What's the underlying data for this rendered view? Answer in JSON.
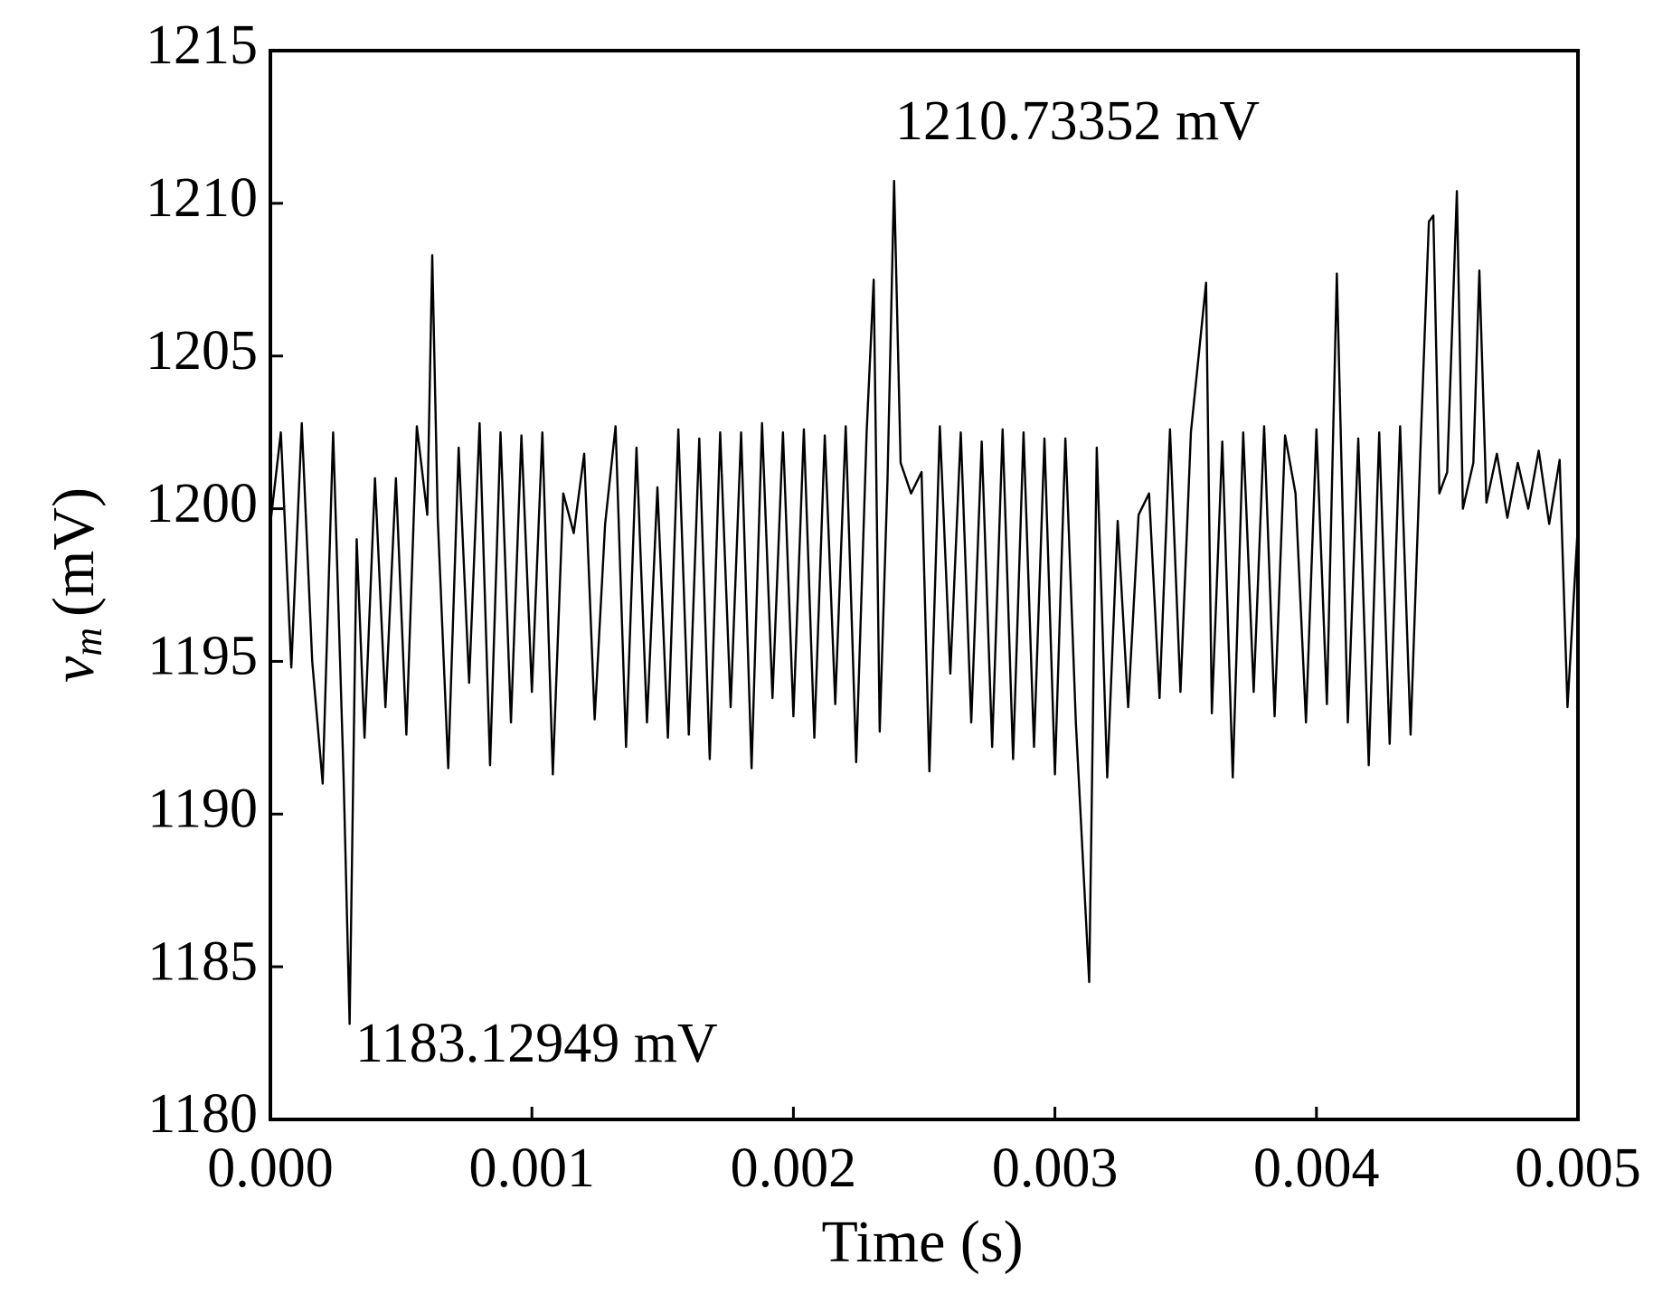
{
  "chart_data": {
    "type": "line",
    "xlabel": "Time (s)",
    "ylabel": {
      "symbol": "v",
      "subscript": "m",
      "unit": "(mV)"
    },
    "annotations": [
      "1210.73352 mV",
      "1183.12949 mV"
    ],
    "xlim": [
      0,
      0.005
    ],
    "xticks": [
      {
        "value": 0,
        "label": "0.000"
      },
      {
        "value": 0.001,
        "label": "0.001"
      },
      {
        "value": 0.002,
        "label": "0.002"
      },
      {
        "value": 0.003,
        "label": "0.003"
      },
      {
        "value": 0.004,
        "label": "0.004"
      },
      {
        "value": 0.005,
        "label": "0.005"
      }
    ],
    "ylim": [
      1180,
      1215
    ],
    "yticks": [
      1180,
      1185,
      1190,
      1195,
      1200,
      1205,
      1210,
      1215
    ],
    "grid": false,
    "series": [
      {
        "color": "#000000",
        "x": [
          0,
          4e-05,
          8e-05,
          0.00012,
          0.00016,
          0.0002,
          0.00024,
          0.00028,
          0.000303,
          0.00033,
          0.00036,
          0.0004,
          0.00044,
          0.00048,
          0.00052,
          0.00056,
          0.0006,
          0.000619,
          0.00064,
          0.00068,
          0.00072,
          0.00076,
          0.0008,
          0.00084,
          0.00088,
          0.00092,
          0.00096,
          0.001,
          0.00104,
          0.00108,
          0.00112,
          0.00116,
          0.0012,
          0.00124,
          0.00128,
          0.00132,
          0.00136,
          0.0014,
          0.00144,
          0.00148,
          0.00152,
          0.00156,
          0.0016,
          0.00164,
          0.00168,
          0.00172,
          0.00176,
          0.0018,
          0.00184,
          0.00188,
          0.00192,
          0.00196,
          0.002,
          0.00204,
          0.00208,
          0.00212,
          0.00216,
          0.0022,
          0.00224,
          0.00228,
          0.002307,
          0.00233,
          0.00236,
          0.002385,
          0.00241,
          0.00245,
          0.00249,
          0.00252,
          0.00256,
          0.0026,
          0.00264,
          0.00268,
          0.00272,
          0.00276,
          0.0028,
          0.00284,
          0.00288,
          0.00292,
          0.00296,
          0.003,
          0.00304,
          0.00308,
          0.003131,
          0.00316,
          0.0032,
          0.00324,
          0.00328,
          0.00332,
          0.00336,
          0.0034,
          0.00344,
          0.00348,
          0.00352,
          0.003578,
          0.0036,
          0.00364,
          0.00368,
          0.00372,
          0.00376,
          0.0038,
          0.00384,
          0.00388,
          0.00392,
          0.00396,
          0.004,
          0.00404,
          0.004078,
          0.00412,
          0.00416,
          0.0042,
          0.00424,
          0.00428,
          0.00432,
          0.00436,
          0.0044,
          0.00443,
          0.004447,
          0.00447,
          0.0045,
          0.004537,
          0.00456,
          0.0046,
          0.004623,
          0.00465,
          0.00469,
          0.00473,
          0.00477,
          0.00481,
          0.00485,
          0.00489,
          0.00493,
          0.00496,
          0.005
        ],
        "values": [
          1199.5,
          1202.5,
          1194.8,
          1202.8,
          1195,
          1191,
          1202.5,
          1191.2,
          1183.12949,
          1199,
          1192.5,
          1201,
          1193.5,
          1201,
          1192.6,
          1202.7,
          1199.8,
          1208.3,
          1199.7,
          1191.5,
          1202,
          1194.3,
          1202.8,
          1191.6,
          1202.5,
          1193,
          1202.4,
          1194,
          1202.5,
          1191.3,
          1200.5,
          1199.2,
          1201.8,
          1193.1,
          1199.5,
          1202.7,
          1192.2,
          1202,
          1193,
          1200.7,
          1192.5,
          1202.6,
          1192.6,
          1202.3,
          1191.8,
          1202.5,
          1193.5,
          1202.5,
          1191.5,
          1202.8,
          1193.8,
          1202.5,
          1193.2,
          1202.6,
          1192.5,
          1202.4,
          1193.6,
          1202.7,
          1191.7,
          1202.5,
          1207.5,
          1192.7,
          1201,
          1210.73352,
          1201.5,
          1200.5,
          1201.2,
          1191.4,
          1202.7,
          1194.6,
          1202.5,
          1193,
          1202.2,
          1192.2,
          1202.6,
          1191.8,
          1202.5,
          1192.2,
          1202.3,
          1191.3,
          1202.3,
          1193,
          1184.5,
          1202,
          1191.2,
          1199.6,
          1193.5,
          1199.8,
          1200.5,
          1193.8,
          1202.6,
          1194,
          1202.5,
          1207.4,
          1193.3,
          1202.2,
          1191.2,
          1202.5,
          1194,
          1202.7,
          1193.2,
          1202.4,
          1200.5,
          1193,
          1202.6,
          1193.6,
          1207.7,
          1193,
          1202.3,
          1191.6,
          1202.5,
          1192.3,
          1202.7,
          1192.6,
          1202.5,
          1209.4,
          1209.6,
          1200.5,
          1201.2,
          1210.4,
          1200,
          1201.5,
          1207.8,
          1200.2,
          1201.8,
          1199.7,
          1201.5,
          1200,
          1201.9,
          1199.5,
          1201.6,
          1193.5,
          1199.5
        ]
      }
    ]
  }
}
